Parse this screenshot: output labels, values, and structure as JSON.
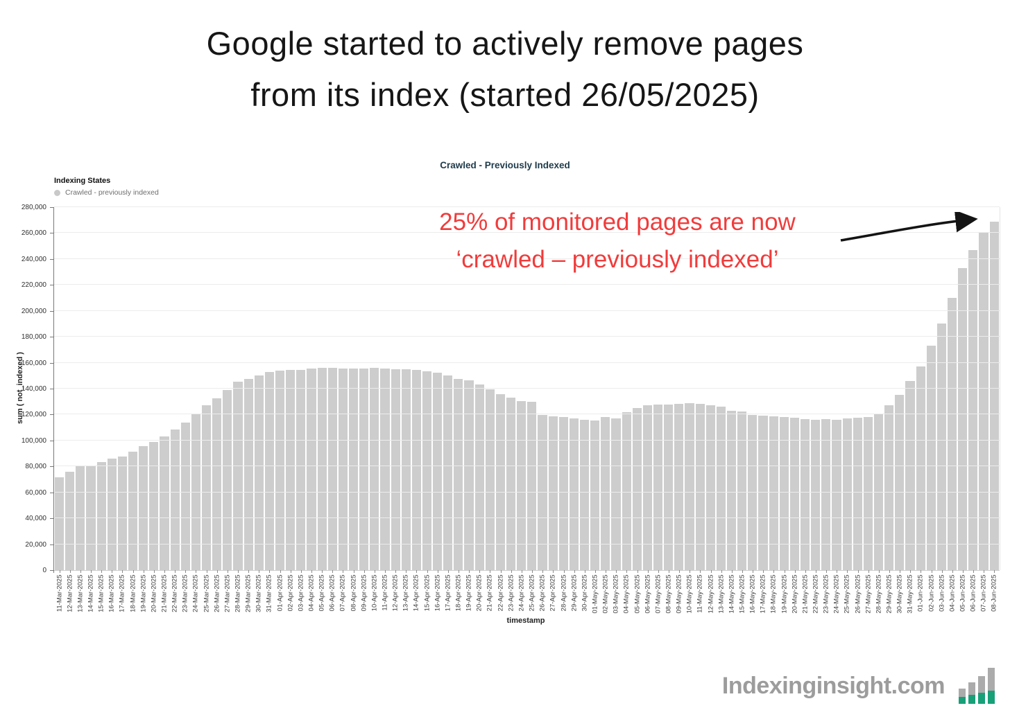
{
  "header": {
    "title_line1": "Google started to actively remove pages",
    "title_line2": "from its index (started 26/05/2025)"
  },
  "annotation": {
    "line1": "25% of monitored pages are now",
    "line2": "‘crawled – previously indexed’"
  },
  "footer": {
    "brand": "Indexinginsight.com"
  },
  "colors": {
    "bar": "#cdcdcd",
    "annotation_red": "#f13b3b",
    "subtitle_teal": "#1e3a4a",
    "brand_gray": "#9c9c9c",
    "logo_green": "#18a078",
    "arrow_black": "#141414"
  },
  "chart_data": {
    "type": "bar",
    "title": "Crawled - Previously Indexed",
    "legend_title": "Indexing States",
    "legend_items": [
      {
        "label": "Crawled - previously indexed",
        "color": "#c9c9c9"
      }
    ],
    "xlabel": "timestamp",
    "ylabel": "sum ( not_indexed )",
    "ylim": [
      0,
      280000
    ],
    "ytick_step": 20000,
    "grid": true,
    "categories": [
      "11-Mar-2025",
      "12-Mar-2025",
      "13-Mar-2025",
      "14-Mar-2025",
      "15-Mar-2025",
      "16-Mar-2025",
      "17-Mar-2025",
      "18-Mar-2025",
      "19-Mar-2025",
      "20-Mar-2025",
      "21-Mar-2025",
      "22-Mar-2025",
      "23-Mar-2025",
      "24-Mar-2025",
      "25-Mar-2025",
      "26-Mar-2025",
      "27-Mar-2025",
      "28-Mar-2025",
      "29-Mar-2025",
      "30-Mar-2025",
      "31-Mar-2025",
      "01-Apr-2025",
      "02-Apr-2025",
      "03-Apr-2025",
      "04-Apr-2025",
      "05-Apr-2025",
      "06-Apr-2025",
      "07-Apr-2025",
      "08-Apr-2025",
      "09-Apr-2025",
      "10-Apr-2025",
      "11-Apr-2025",
      "12-Apr-2025",
      "13-Apr-2025",
      "14-Apr-2025",
      "15-Apr-2025",
      "16-Apr-2025",
      "17-Apr-2025",
      "18-Apr-2025",
      "19-Apr-2025",
      "20-Apr-2025",
      "21-Apr-2025",
      "22-Apr-2025",
      "23-Apr-2025",
      "24-Apr-2025",
      "25-Apr-2025",
      "26-Apr-2025",
      "27-Apr-2025",
      "28-Apr-2025",
      "29-Apr-2025",
      "30-Apr-2025",
      "01-May-2025",
      "02-May-2025",
      "03-May-2025",
      "04-May-2025",
      "05-May-2025",
      "06-May-2025",
      "07-May-2025",
      "08-May-2025",
      "09-May-2025",
      "10-May-2025",
      "11-May-2025",
      "12-May-2025",
      "13-May-2025",
      "14-May-2025",
      "15-May-2025",
      "16-May-2025",
      "17-May-2025",
      "18-May-2025",
      "19-May-2025",
      "20-May-2025",
      "21-May-2025",
      "22-May-2025",
      "23-May-2025",
      "24-May-2025",
      "25-May-2025",
      "26-May-2025",
      "27-May-2025",
      "28-May-2025",
      "29-May-2025",
      "30-May-2025",
      "31-May-2025",
      "01-Jun-2025",
      "02-Jun-2025",
      "03-Jun-2025",
      "04-Jun-2025",
      "05-Jun-2025",
      "06-Jun-2025",
      "07-Jun-2025",
      "08-Jun-2025"
    ],
    "values": [
      71500,
      75900,
      80200,
      80300,
      83300,
      85800,
      87500,
      91500,
      95600,
      98600,
      103400,
      108500,
      114000,
      120000,
      127200,
      132700,
      138800,
      145100,
      147300,
      150400,
      152700,
      154100,
      154700,
      154700,
      155700,
      156100,
      156100,
      155700,
      155700,
      155700,
      156000,
      155700,
      155000,
      155000,
      154300,
      153600,
      152100,
      150400,
      147400,
      146300,
      143000,
      139500,
      136000,
      133000,
      130500,
      129900,
      119500,
      118400,
      118100,
      117200,
      116100,
      115600,
      118100,
      116800,
      121800,
      124900,
      127200,
      127600,
      127600,
      128100,
      128600,
      128100,
      127200,
      126300,
      122700,
      122200,
      119700,
      119200,
      118900,
      118300,
      117700,
      116500,
      116100,
      116500,
      116100,
      116800,
      117500,
      118000,
      120500,
      127000,
      135000,
      146000,
      157000,
      173000,
      190000,
      210000,
      233000,
      247000,
      260000,
      269000
    ]
  }
}
